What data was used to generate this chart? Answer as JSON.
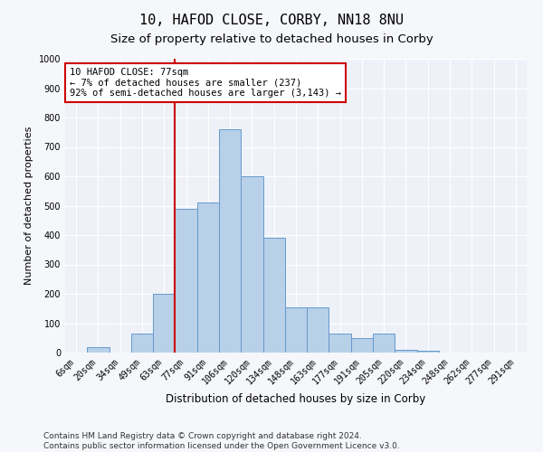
{
  "title": "10, HAFOD CLOSE, CORBY, NN18 8NU",
  "subtitle": "Size of property relative to detached houses in Corby",
  "xlabel": "Distribution of detached houses by size in Corby",
  "ylabel": "Number of detached properties",
  "categories": [
    "6sqm",
    "20sqm",
    "34sqm",
    "49sqm",
    "63sqm",
    "77sqm",
    "91sqm",
    "106sqm",
    "120sqm",
    "134sqm",
    "148sqm",
    "163sqm",
    "177sqm",
    "191sqm",
    "205sqm",
    "220sqm",
    "234sqm",
    "248sqm",
    "262sqm",
    "277sqm",
    "291sqm"
  ],
  "values": [
    0,
    20,
    0,
    65,
    200,
    490,
    510,
    760,
    600,
    390,
    155,
    155,
    65,
    50,
    65,
    10,
    5,
    0,
    0,
    0,
    0
  ],
  "bar_color": "#b8d0e8",
  "bar_edge_color": "#6699cc",
  "bar_linewidth": 0.7,
  "vline_color": "#cc0000",
  "vline_x_index": 5,
  "annotation_text": "10 HAFOD CLOSE: 77sqm\n← 7% of detached houses are smaller (237)\n92% of semi-detached houses are larger (3,143) →",
  "annotation_box_color": "#ffffff",
  "annotation_box_edge_color": "#cc0000",
  "ylim": [
    0,
    1000
  ],
  "yticks": [
    0,
    100,
    200,
    300,
    400,
    500,
    600,
    700,
    800,
    900,
    1000
  ],
  "footer": "Contains HM Land Registry data © Crown copyright and database right 2024.\nContains public sector information licensed under the Open Government Licence v3.0.",
  "bg_color": "#eef2f8",
  "grid_color": "#ffffff",
  "fig_bg_color": "#f5f7fa",
  "title_fontsize": 11,
  "subtitle_fontsize": 9.5,
  "ylabel_fontsize": 8,
  "xlabel_fontsize": 8.5,
  "tick_fontsize": 7,
  "annotation_fontsize": 7.5,
  "footer_fontsize": 6.5
}
